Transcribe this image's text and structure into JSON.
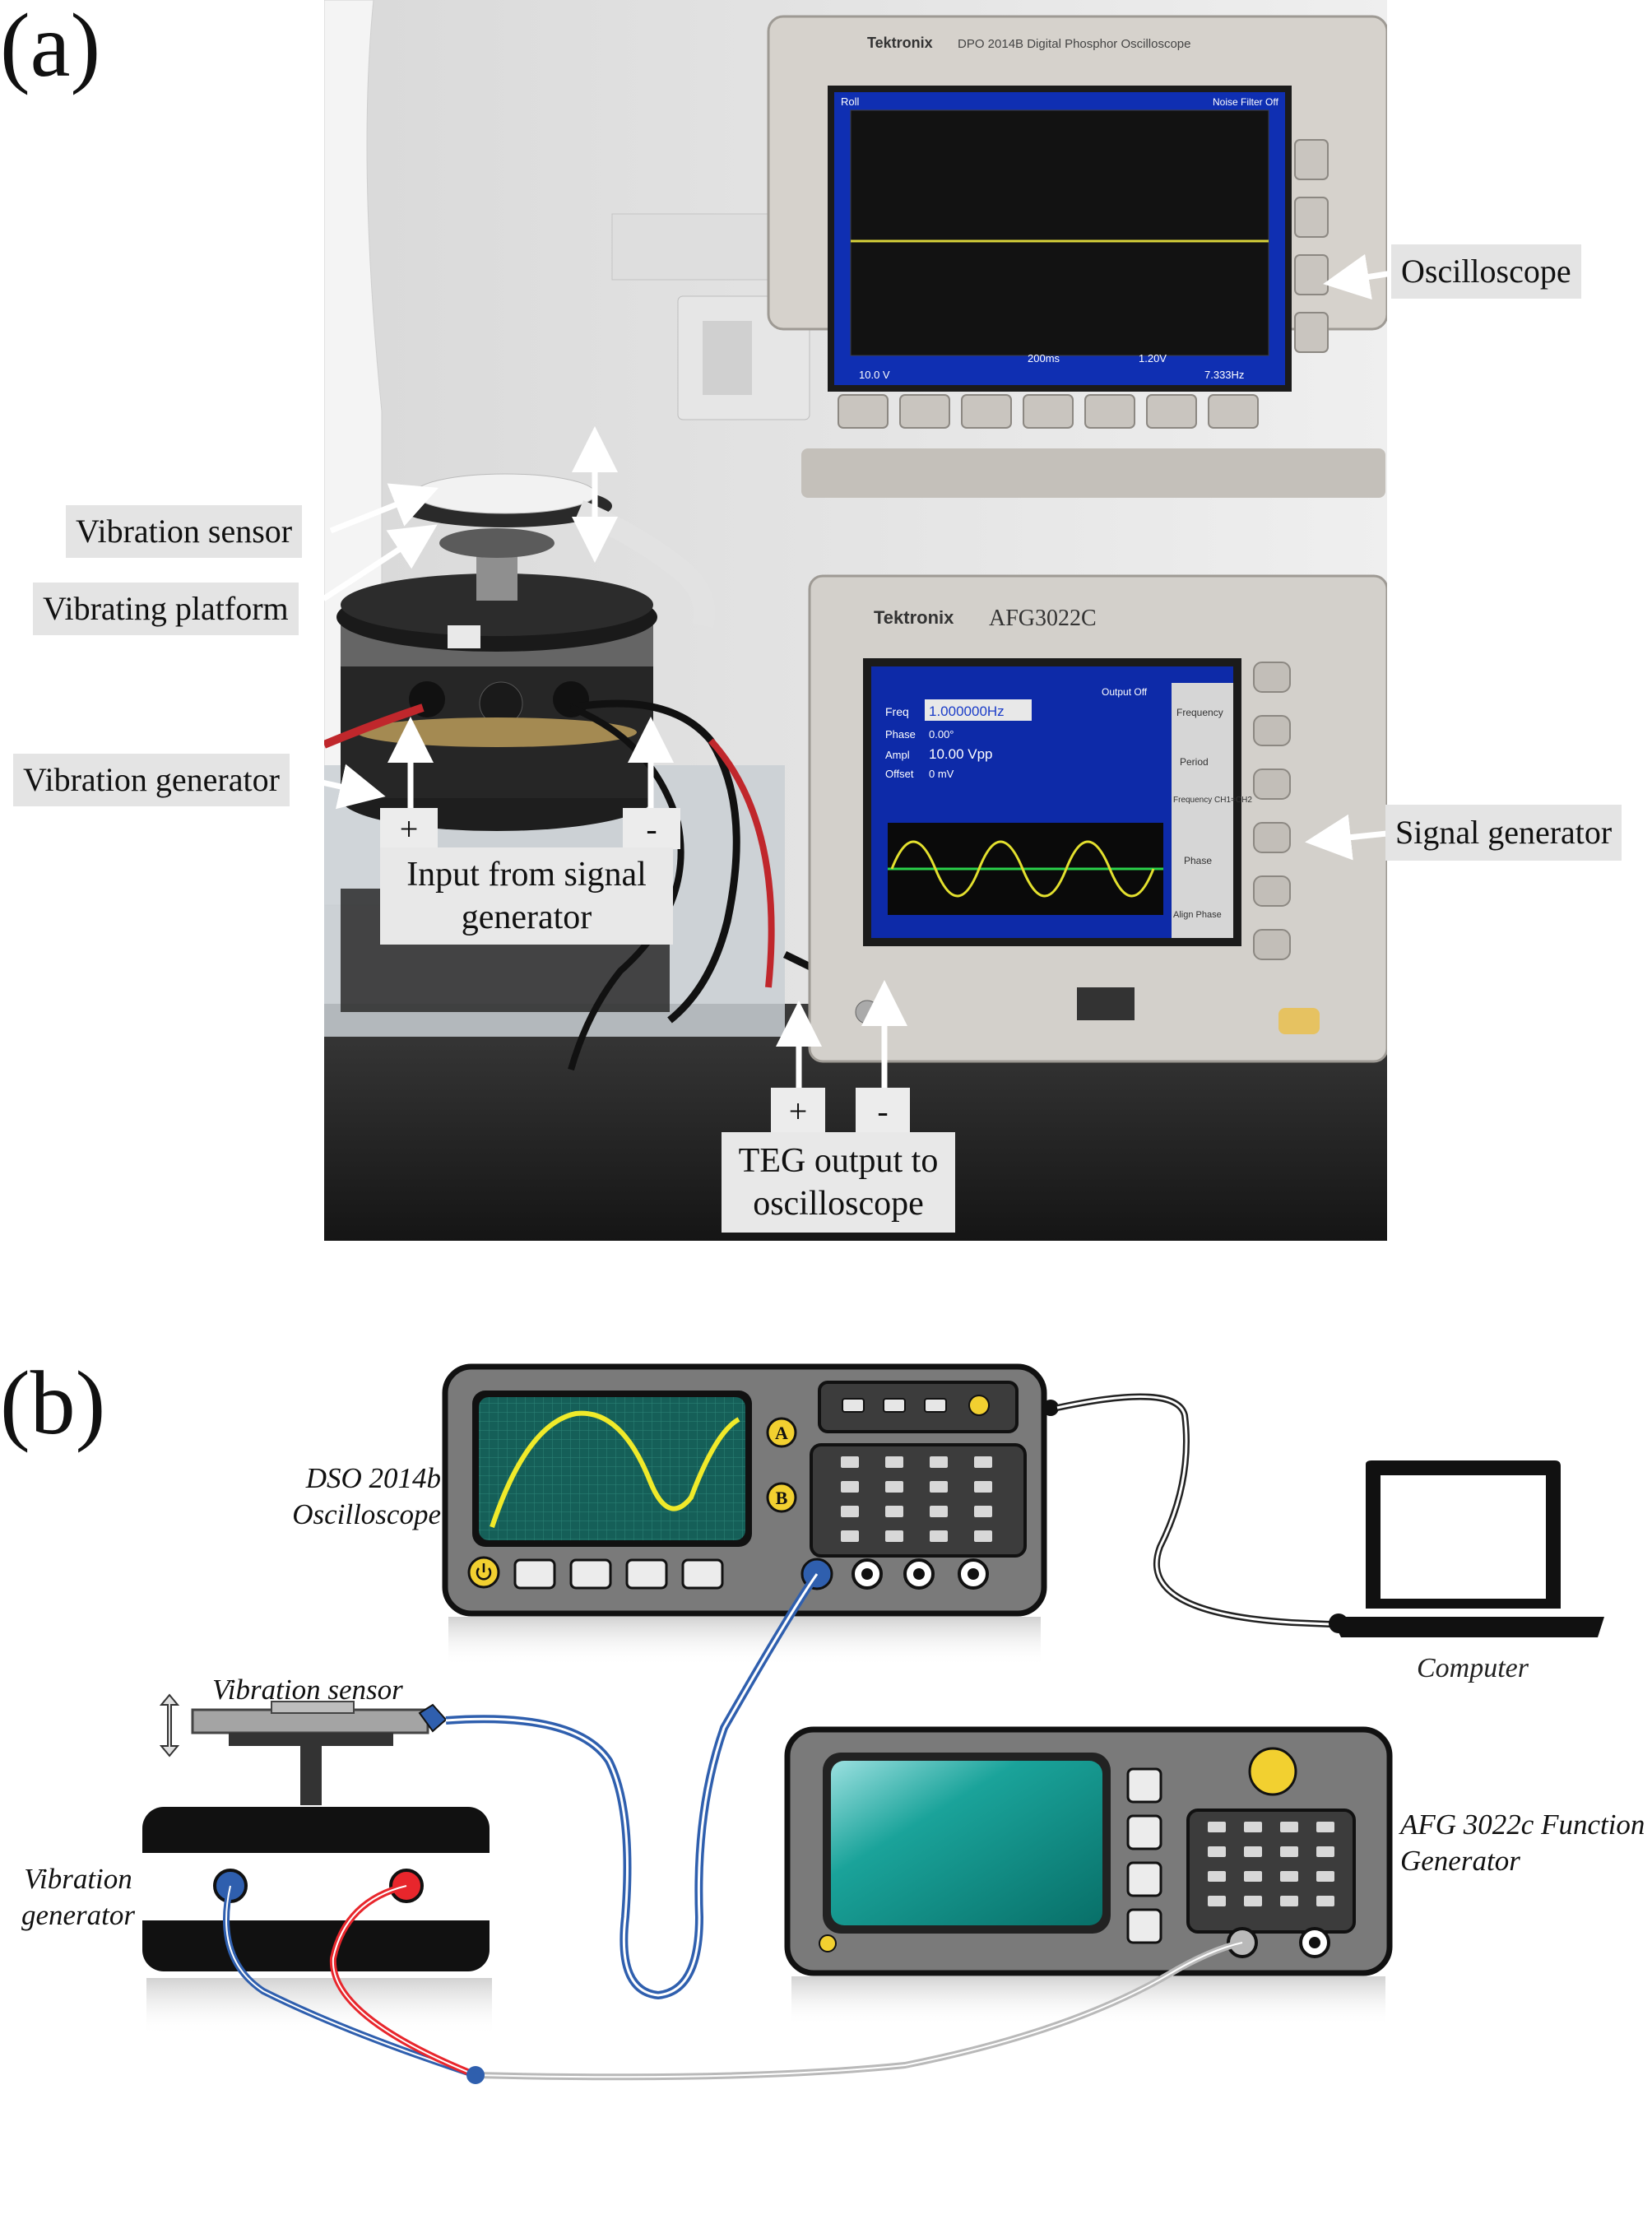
{
  "panel_a": {
    "label": "(a)",
    "scope_brand": "Tektronix",
    "scope_model": "DPO 2014B Digital Phosphor Oscilloscope",
    "scope_screen": {
      "top_left": "Roll",
      "top_right": "Noise Filter Off",
      "ch1": "10.0 V",
      "time": "200ms",
      "trig": "1.20V",
      "freq": "7.333Hz"
    },
    "gen_brand": "Tektronix",
    "gen_model": "AFG3022C",
    "gen_screen": {
      "freq_label": "Freq",
      "freq_value": "1.000000Hz",
      "phase_label": "Phase",
      "phase_value": "0.00°",
      "ampl_label": "Ampl",
      "ampl_value": "10.00 Vpp",
      "offset_label": "Offset",
      "offset_value": "0 mV",
      "output": "Output Off",
      "soft_keys": [
        "Frequency",
        "Period",
        "Frequency CH1=CH2",
        "Phase",
        "Align Phase"
      ]
    },
    "labels": {
      "oscilloscope": "Oscilloscope",
      "vibration_sensor": "Vibration sensor",
      "vibrating_platform": "Vibrating platform",
      "vibration_generator": "Vibration generator",
      "signal_generator": "Signal generator",
      "input_from_signal_generator": "Input from signal generator",
      "teg_output": "TEG output to oscilloscope",
      "plus": "+",
      "minus": "-"
    }
  },
  "panel_b": {
    "label": "(b)",
    "oscilloscope_label": "DSO 2014b Oscilloscope",
    "scope_btn_a": "A",
    "scope_btn_b": "B",
    "computer_label": "Computer",
    "vibration_sensor_label": "Vibration sensor",
    "vibration_generator_label": "Vibration generator",
    "function_generator_label": "AFG 3022c Function Generator",
    "colors": {
      "device_body": "#7a7a7a",
      "screen_scope": "#155f58",
      "trace": "#f0ea2a",
      "screen_afg": "#0e8f86",
      "knob": "#f2d030",
      "wire_blue": "#2f5fae",
      "wire_red": "#e8262c",
      "wire_grey": "#b9b9b9"
    }
  }
}
